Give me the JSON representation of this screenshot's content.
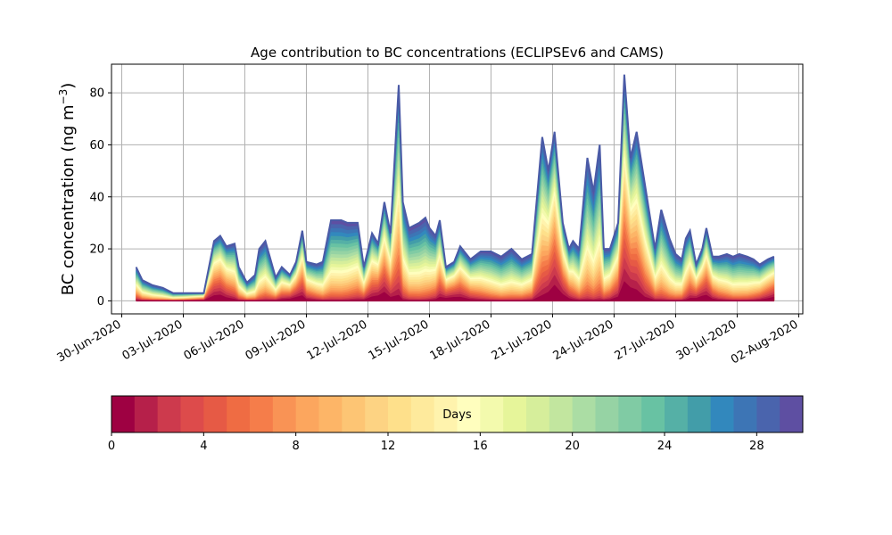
{
  "chart_data": {
    "type": "area",
    "title": "Age contribution to BC concentrations (ECLIPSEv6 and CAMS)",
    "ylabel": "BC concentration (ng m",
    "ylabel_superscript": "−3",
    "ylabel_close": ")",
    "ylim": [
      -5,
      91
    ],
    "y_ticks": [
      0,
      20,
      40,
      60,
      80
    ],
    "x_ticks": [
      "30-Jun-2020",
      "03-Jul-2020",
      "06-Jul-2020",
      "09-Jul-2020",
      "12-Jul-2020",
      "15-Jul-2020",
      "18-Jul-2020",
      "21-Jul-2020",
      "24-Jul-2020",
      "27-Jul-2020",
      "30-Jul-2020",
      "02-Aug-2020"
    ],
    "grid": true,
    "layer_days": 30,
    "series_note": "stacked layers by age in days (0–30), colored along the colorbar",
    "x": [
      "01-Jul-2020",
      "02-Jul-2020",
      "03-Jul-2020",
      "04-Jul-2020",
      "05-Jul-2020",
      "06-Jul-2020",
      "07-Jul-2020",
      "08-Jul-2020",
      "09-Jul-2020",
      "10-Jul-2020",
      "11-Jul-2020",
      "12-Jul-2020",
      "13-Jul-2020",
      "14-Jul-2020",
      "15-Jul-2020",
      "16-Jul-2020",
      "17-Jul-2020",
      "18-Jul-2020",
      "19-Jul-2020",
      "20-Jul-2020",
      "21-Jul-2020",
      "22-Jul-2020",
      "23-Jul-2020",
      "24-Jul-2020",
      "25-Jul-2020",
      "26-Jul-2020",
      "27-Jul-2020",
      "28-Jul-2020",
      "29-Jul-2020",
      "30-Jul-2020",
      "31-Jul-2020",
      "01-Aug-2020"
    ],
    "x_num": [
      1.2,
      1.5,
      2.0,
      2.5,
      3.0,
      3.5,
      4.0,
      4.5,
      5.0,
      5.3,
      5.6,
      6.0,
      6.2,
      6.6,
      7.0,
      7.2,
      7.5,
      8.0,
      8.3,
      8.7,
      9.0,
      9.3,
      9.5,
      10.0,
      10.3,
      10.7,
      11.2,
      11.5,
      12.0,
      12.3,
      12.7,
      13.0,
      13.3,
      13.6,
      14.0,
      14.2,
      14.5,
      15.0,
      15.3,
      15.5,
      15.8,
      16.0,
      16.3,
      16.7,
      17.0,
      17.5,
      18.0,
      18.5,
      19.0,
      19.5,
      20.0,
      20.5,
      21.0,
      21.3,
      21.6,
      22.0,
      22.3,
      22.5,
      22.8,
      23.2,
      23.5,
      23.8,
      24.0,
      24.3,
      24.7,
      25.0,
      25.3,
      25.6,
      26.0,
      26.5,
      26.8,
      27.2,
      27.5,
      27.8,
      28.0,
      28.2,
      28.5,
      28.8,
      29.0,
      29.3,
      29.6,
      30.0,
      30.3,
      30.6,
      31.0,
      31.3,
      31.6,
      32.0,
      32.3
    ],
    "total": [
      13,
      8,
      6,
      5,
      3,
      3,
      3,
      3,
      23,
      25,
      21,
      22,
      13,
      7,
      10,
      20,
      23,
      9,
      13,
      10,
      15,
      27,
      15,
      14,
      15,
      31,
      31,
      30,
      30,
      13,
      26,
      22,
      38,
      26,
      83,
      38,
      28,
      30,
      32,
      28,
      25,
      31,
      13,
      15,
      21,
      16,
      19,
      19,
      17,
      20,
      16,
      18,
      63,
      50,
      65,
      30,
      20,
      23,
      20,
      55,
      42,
      60,
      20,
      20,
      30,
      87,
      55,
      65,
      45,
      20,
      35,
      24,
      18,
      16,
      24,
      27,
      14,
      20,
      28,
      17,
      17,
      18,
      17,
      18,
      17,
      16,
      14,
      16,
      17
    ],
    "colorbar": {
      "label": "Days",
      "range": [
        0,
        30
      ],
      "ticks": [
        0,
        4,
        8,
        12,
        16,
        20,
        24,
        28
      ],
      "colors": [
        "#9e0142",
        "#b6204a",
        "#cd3a4d",
        "#dd4b4b",
        "#e65a45",
        "#ef6c43",
        "#f57d4a",
        "#f99355",
        "#fca65e",
        "#fdb567",
        "#fdc574",
        "#fdd383",
        "#fee08b",
        "#feea9c",
        "#fff3ad",
        "#fffebe",
        "#f3faad",
        "#e6f59a",
        "#d6ee9b",
        "#c2e69f",
        "#abdda4",
        "#96d3a4",
        "#80cba4",
        "#68c2a3",
        "#55b0a6",
        "#429da9",
        "#3288bd",
        "#3d75b5",
        "#4a64ad",
        "#5e4fa2"
      ]
    }
  }
}
